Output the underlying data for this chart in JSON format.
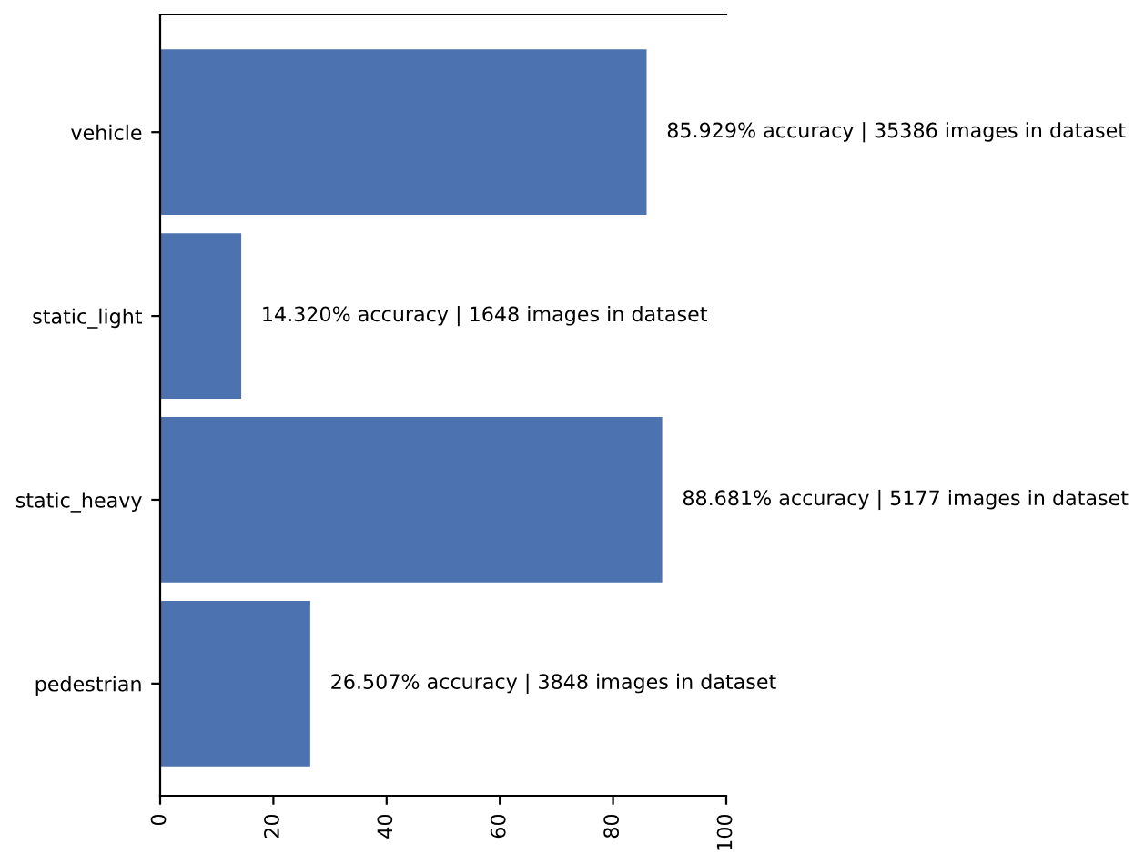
{
  "chart_data": {
    "type": "bar",
    "orientation": "horizontal",
    "categories": [
      "vehicle",
      "static_light",
      "static_heavy",
      "pedestrian"
    ],
    "values": [
      85.929,
      14.32,
      88.681,
      26.507
    ],
    "value_labels": [
      "85.929% accuracy | 35386 images in dataset",
      "14.320% accuracy | 1648 images in dataset",
      "88.681% accuracy | 5177 images in dataset",
      "26.507% accuracy | 3848 images in dataset"
    ],
    "color": "#4c72b0",
    "xlim": [
      0,
      100
    ],
    "xticks": [
      0,
      20,
      40,
      60,
      80,
      100
    ],
    "grid": false,
    "legend": false
  }
}
